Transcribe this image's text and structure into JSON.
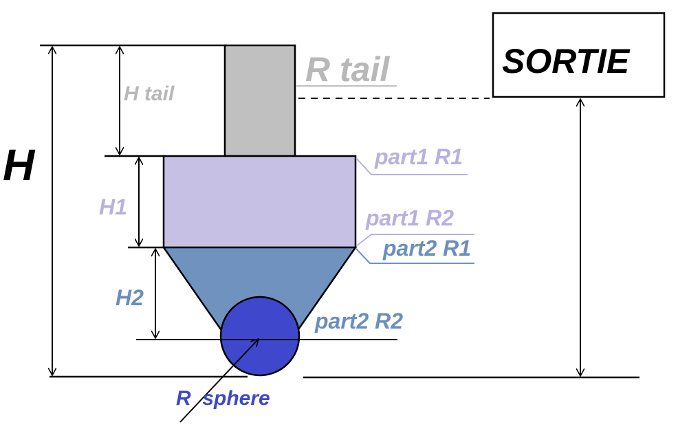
{
  "labels": {
    "H": "H",
    "H_tail": "H tail",
    "R_tail": "R tail",
    "H1": "H1",
    "H2": "H2",
    "part1_R1": "part1 R1",
    "part1_R2": "part1 R2",
    "part2_R1": "part2 R1",
    "part2_R2": "part2 R2",
    "R_sphere": "R  sphere",
    "sortie": "SORTIE"
  },
  "colors": {
    "tail": "#c0c0c0",
    "tail_label": "#b8b8b8",
    "part1": "#c6c0e5",
    "part1_label": "#b9b0df",
    "part2": "#6f92bf",
    "part2_label": "#6b8fbd",
    "sphere": "#3f48cc",
    "sphere_label": "#3f48cc",
    "line": "#000000"
  }
}
